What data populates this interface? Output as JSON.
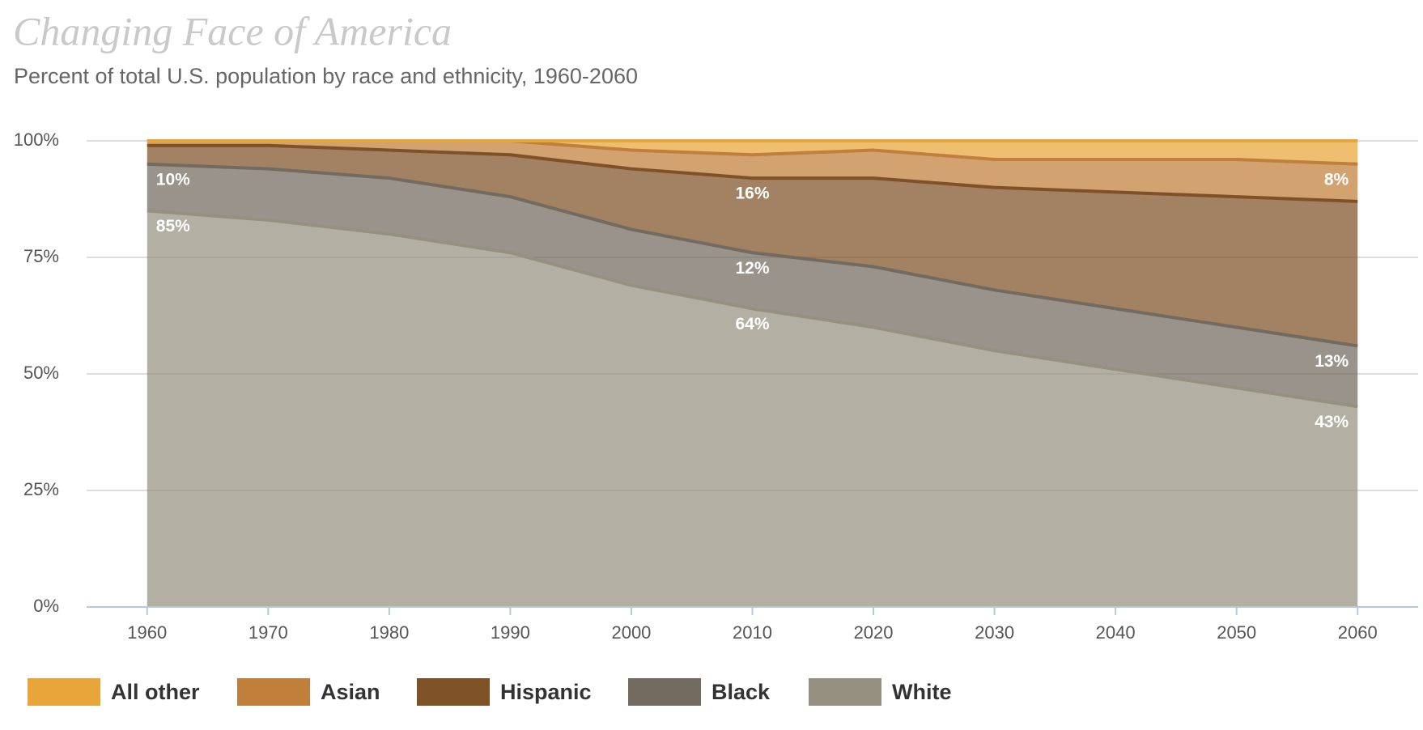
{
  "chart_data": {
    "type": "stacked-area",
    "title": "Changing Face of America",
    "subtitle": "Percent of total U.S. population by race and ethnicity, 1960-2060",
    "x": [
      1960,
      1970,
      1980,
      1990,
      2000,
      2010,
      2020,
      2030,
      2040,
      2050,
      2060
    ],
    "xlim": [
      1955,
      2065
    ],
    "xticks": [
      1960,
      1970,
      1980,
      1990,
      2000,
      2010,
      2020,
      2030,
      2040,
      2050,
      2060
    ],
    "ylim": [
      0,
      100
    ],
    "yticks": [
      {
        "value": 0,
        "label": "0%"
      },
      {
        "value": 25,
        "label": "25%"
      },
      {
        "value": 50,
        "label": "50%"
      },
      {
        "value": 75,
        "label": "75%"
      },
      {
        "value": 100,
        "label": "100%"
      }
    ],
    "grid": true,
    "legend": "bottom",
    "series": [
      {
        "name": "All other",
        "color": "#e8a53a",
        "values": [
          0,
          0,
          0,
          0,
          2,
          3,
          2,
          4,
          4,
          4,
          5
        ]
      },
      {
        "name": "Asian",
        "color": "#c07f3a",
        "values": [
          1,
          1,
          2,
          3,
          4,
          5,
          6,
          6,
          7,
          8,
          8
        ],
        "value_labels": [
          null,
          null,
          null,
          null,
          null,
          null,
          null,
          null,
          null,
          null,
          "8%"
        ]
      },
      {
        "name": "Hispanic",
        "color": "#7f5127",
        "values": [
          4,
          5,
          6,
          9,
          13,
          16,
          19,
          22,
          25,
          28,
          31
        ],
        "value_labels": [
          null,
          null,
          null,
          null,
          null,
          "16%",
          null,
          null,
          null,
          null,
          null
        ]
      },
      {
        "name": "Black",
        "color": "#736a60",
        "values": [
          10,
          11,
          12,
          12,
          12,
          12,
          13,
          13,
          13,
          13,
          13
        ],
        "value_labels": [
          "10%",
          null,
          null,
          null,
          null,
          "12%",
          null,
          null,
          null,
          null,
          "13%"
        ]
      },
      {
        "name": "White",
        "color": "#969080",
        "values": [
          85,
          83,
          80,
          76,
          69,
          64,
          60,
          55,
          51,
          47,
          43
        ],
        "value_labels": [
          "85%",
          null,
          null,
          null,
          null,
          "64%",
          null,
          null,
          null,
          null,
          "43%"
        ]
      }
    ]
  }
}
